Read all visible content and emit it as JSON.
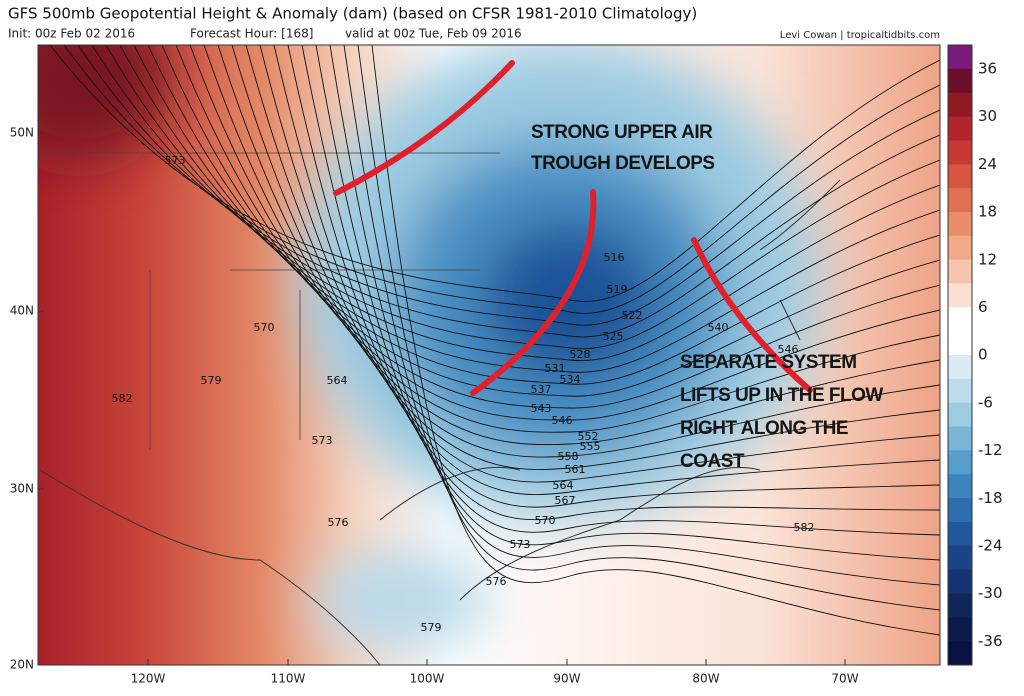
{
  "header": {
    "title": "GFS 500mb Geopotential Height & Anomaly (dam) (based on CFSR 1981-2010 Climatology)",
    "init": "Init: 00z Feb 02 2016",
    "forecast": "Forecast Hour: [168]",
    "valid": "valid at 00z Tue, Feb 09 2016",
    "credit": "Levi Cowan | tropicaltidbits.com"
  },
  "annotations": [
    {
      "lines": [
        "STRONG UPPER AIR",
        "TROUGH DEVELOPS"
      ]
    },
    {
      "lines": [
        "SEPARATE SYSTEM",
        "LIFTS UP IN THE FLOW",
        "RIGHT ALONG THE",
        "COAST"
      ]
    }
  ],
  "latitude_labels": [
    "50N",
    "40N",
    "30N",
    "20N"
  ],
  "longitude_labels": [
    "120W",
    "110W",
    "100W",
    "90W",
    "80W",
    "70W"
  ],
  "colorbar_labels": [
    "36",
    "30",
    "24",
    "18",
    "12",
    "6",
    "0",
    "-6",
    "-12",
    "-18",
    "-24",
    "-30",
    "-36"
  ],
  "contour_labels": [
    "573",
    "570",
    "579",
    "582",
    "564",
    "573",
    "576",
    "579",
    "576",
    "573",
    "570",
    "567",
    "564",
    "561",
    "558",
    "555",
    "552",
    "546",
    "543",
    "537",
    "534",
    "531",
    "528",
    "525",
    "522",
    "519",
    "516",
    "540",
    "546",
    "582"
  ]
}
